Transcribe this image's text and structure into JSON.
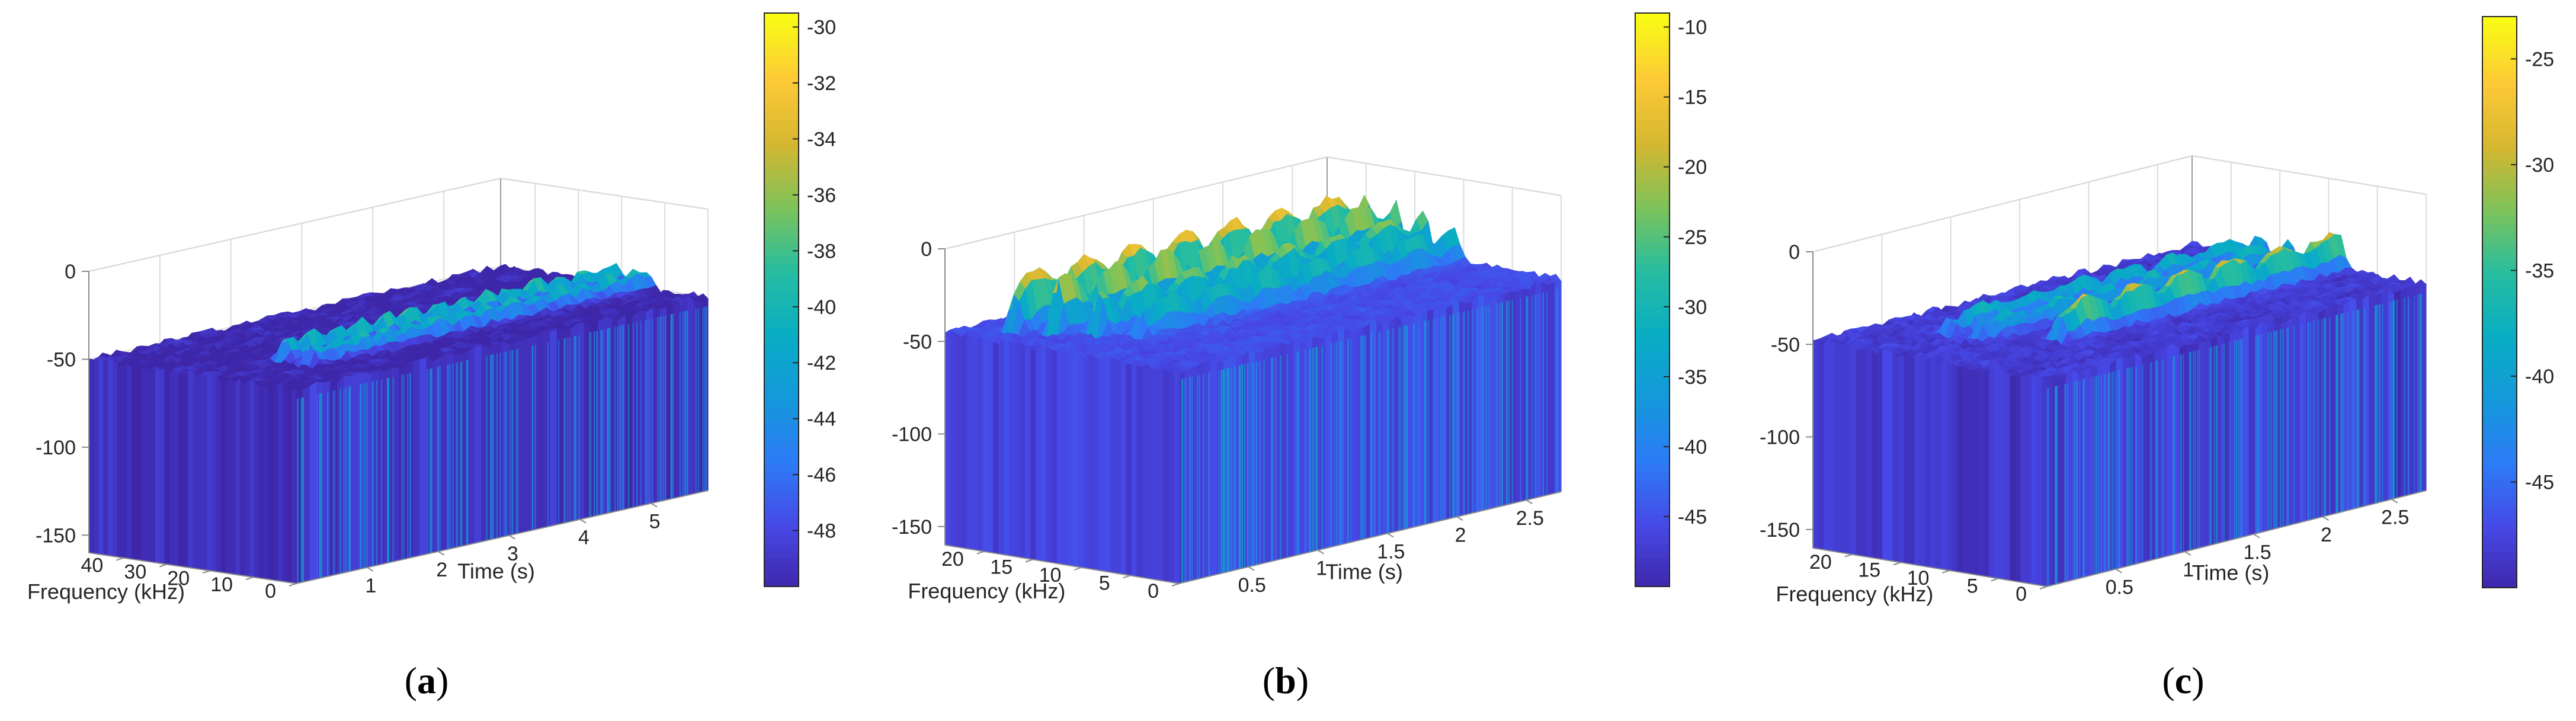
{
  "figure": {
    "panels": [
      "a",
      "b",
      "c"
    ]
  },
  "chart_data": [
    {
      "type": "surface",
      "panel_label": "a",
      "xlabel": "Time (s)",
      "ylabel": "Frequency (kHz)",
      "zlabel": "",
      "xticks": [
        "1",
        "2",
        "3",
        "4",
        "5"
      ],
      "yticks": [
        "0",
        "10",
        "20",
        "30",
        "40"
      ],
      "zticks": [
        "0",
        "-50",
        "-100",
        "-150"
      ],
      "xlim": [
        0,
        5.8
      ],
      "ylim": [
        0,
        48
      ],
      "zlim": [
        -160,
        0
      ],
      "colorbar": {
        "ticks": [
          "-30",
          "-32",
          "-34",
          "-36",
          "-38",
          "-40",
          "-42",
          "-44",
          "-46",
          "-48"
        ],
        "range": [
          -50,
          -29.5
        ]
      },
      "floor_level_db": -50,
      "bands": [
        {
          "frequency_khz": 20,
          "start_s": 1.0,
          "end_s": 5.8,
          "peak_db": -36
        },
        {
          "frequency_khz": 14,
          "start_s": 1.0,
          "end_s": 5.8,
          "peak_db": -38
        }
      ],
      "colors": {
        "low": "#3e26a8",
        "mid": "#2ab0be",
        "high": "#f9fb15"
      }
    },
    {
      "type": "surface",
      "panel_label": "b",
      "xlabel": "Time (s)",
      "ylabel": "Frequency (kHz)",
      "zlabel": "",
      "xticks": [
        "0.5",
        "1",
        "1.5",
        "2",
        "2.5"
      ],
      "yticks": [
        "0",
        "5",
        "10",
        "15",
        "20"
      ],
      "zticks": [
        "0",
        "-50",
        "-100",
        "-150"
      ],
      "xlim": [
        0,
        2.75
      ],
      "ylim": [
        0,
        24
      ],
      "zlim": [
        -160,
        0
      ],
      "colorbar": {
        "ticks": [
          "-10",
          "-15",
          "-20",
          "-25",
          "-30",
          "-35",
          "-40",
          "-45"
        ],
        "range": [
          -50,
          -9
        ]
      },
      "floor_level_db": -45,
      "bands": [
        {
          "frequency_khz": 20,
          "start_s": 0.2,
          "end_s": 2.75,
          "peak_db": -12
        },
        {
          "frequency_khz": 17,
          "start_s": 0.3,
          "end_s": 2.75,
          "peak_db": -15
        },
        {
          "frequency_khz": 14,
          "start_s": 0.4,
          "end_s": 2.75,
          "peak_db": -20
        },
        {
          "frequency_khz": 11,
          "start_s": 0.5,
          "end_s": 2.75,
          "peak_db": -25
        }
      ],
      "colors": {
        "low": "#3e26a8",
        "mid": "#2ab0be",
        "high": "#f9fb15"
      }
    },
    {
      "type": "surface",
      "panel_label": "c",
      "xlabel": "Time (s)",
      "ylabel": "Frequency (kHz)",
      "zlabel": "",
      "xticks": [
        "0.5",
        "1",
        "1.5",
        "2",
        "2.5"
      ],
      "yticks": [
        "0",
        "5",
        "10",
        "15",
        "20"
      ],
      "zticks": [
        "0",
        "-50",
        "-100",
        "-150"
      ],
      "xlim": [
        0,
        2.75
      ],
      "ylim": [
        0,
        24
      ],
      "zlim": [
        -160,
        0
      ],
      "colorbar": {
        "ticks": [
          "-25",
          "-30",
          "-35",
          "-40",
          "-45"
        ],
        "range": [
          -50,
          -23
        ]
      },
      "floor_level_db": -48,
      "bands": [
        {
          "frequency_khz": 17,
          "start_s": 0.5,
          "end_s": 2.75,
          "peak_db": -35
        },
        {
          "frequency_khz": 14,
          "start_s": 0.5,
          "end_s": 2.75,
          "peak_db": -36
        },
        {
          "frequency_khz": 9,
          "start_s": 0.7,
          "end_s": 2.75,
          "peak_db": -27
        }
      ],
      "colors": {
        "low": "#3e26a8",
        "mid": "#2ab0be",
        "high": "#f9fb15"
      }
    }
  ]
}
